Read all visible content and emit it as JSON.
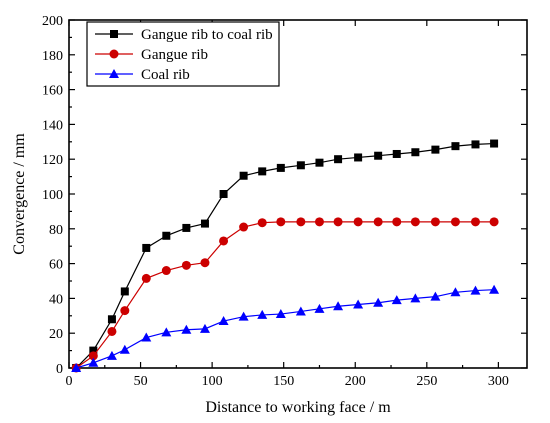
{
  "chart_data": {
    "type": "line",
    "title": "",
    "xlabel": "Distance to working face / m",
    "ylabel": "Convergence / mm",
    "xlim": [
      0,
      320
    ],
    "ylim": [
      0,
      200
    ],
    "xticks": [
      0,
      50,
      100,
      150,
      200,
      250,
      300
    ],
    "yticks": [
      0,
      20,
      40,
      60,
      80,
      100,
      120,
      140,
      160,
      180,
      200
    ],
    "grid": false,
    "legend_position": "top-left",
    "series": [
      {
        "name": "Gangue rib to coal rib",
        "color": "#000000",
        "marker": "square",
        "x": [
          5,
          17,
          30,
          39,
          54,
          68,
          82,
          95,
          108,
          122,
          135,
          148,
          162,
          175,
          188,
          202,
          216,
          229,
          242,
          256,
          270,
          284,
          297
        ],
        "y": [
          0,
          10,
          28,
          44,
          69,
          76,
          80.5,
          83,
          100,
          110.5,
          113,
          115,
          116.5,
          118,
          120,
          121,
          122,
          123,
          124,
          125.5,
          127.5,
          128.5,
          129
        ]
      },
      {
        "name": "Gangue rib",
        "color": "#cc0000",
        "marker": "circle",
        "x": [
          5,
          17,
          30,
          39,
          54,
          68,
          82,
          95,
          108,
          122,
          135,
          148,
          162,
          175,
          188,
          202,
          216,
          229,
          242,
          256,
          270,
          284,
          297
        ],
        "y": [
          0,
          7,
          21,
          33,
          51.5,
          56,
          59,
          60.5,
          73,
          81,
          83.5,
          84,
          84,
          84,
          84,
          84,
          84,
          84,
          84,
          84,
          84,
          84,
          84
        ]
      },
      {
        "name": "Coal rib",
        "color": "#0000ff",
        "marker": "triangle",
        "x": [
          5,
          17,
          30,
          39,
          54,
          68,
          82,
          95,
          108,
          122,
          135,
          148,
          162,
          175,
          188,
          202,
          216,
          229,
          242,
          256,
          270,
          284,
          297
        ],
        "y": [
          0,
          3,
          7,
          10.5,
          17.5,
          20.5,
          22,
          22.5,
          27,
          29.5,
          30.5,
          31,
          32.5,
          34,
          35.5,
          36.5,
          37.5,
          39,
          40,
          41,
          43.5,
          44.5,
          45
        ]
      }
    ]
  }
}
